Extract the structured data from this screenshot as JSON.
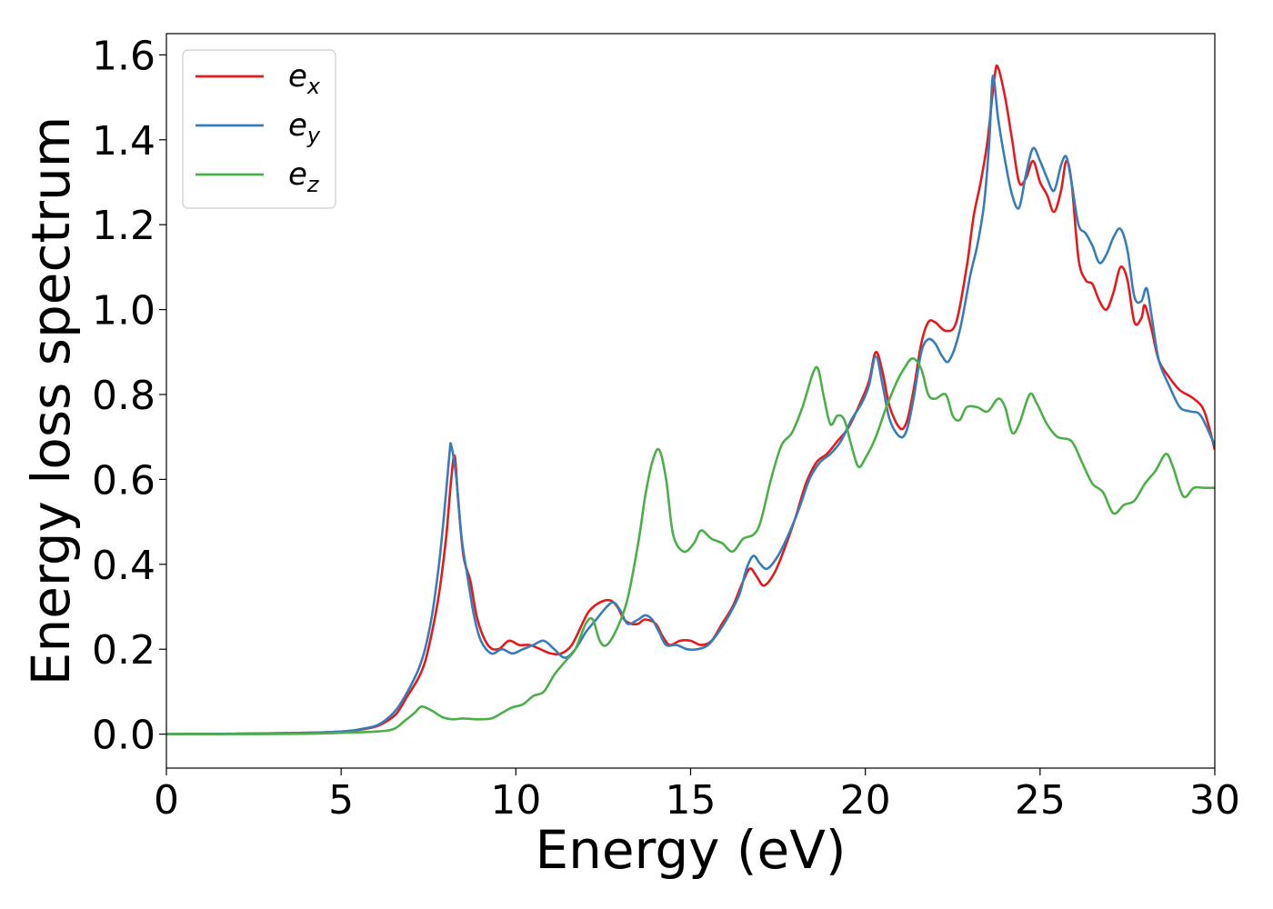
{
  "chart_data": {
    "type": "line",
    "title": "",
    "xlabel": "Energy (eV)",
    "ylabel": "Energy loss spectrum",
    "xlim": [
      0,
      30
    ],
    "ylim": [
      -0.08,
      1.65
    ],
    "xticks": [
      0,
      5,
      10,
      15,
      20,
      25,
      30
    ],
    "xtick_labels": [
      "0",
      "5",
      "10",
      "15",
      "20",
      "25",
      "30"
    ],
    "yticks": [
      0.0,
      0.2,
      0.4,
      0.6,
      0.8,
      1.0,
      1.2,
      1.4,
      1.6
    ],
    "ytick_labels": [
      "0.0",
      "0.2",
      "0.4",
      "0.6",
      "0.8",
      "1.0",
      "1.2",
      "1.4",
      "1.6"
    ],
    "grid": false,
    "legend_position": "top-left",
    "series": [
      {
        "name": "e_x",
        "legend_base": "e",
        "legend_sub": "x",
        "color": "#e41a1c",
        "points": [
          [
            0,
            0
          ],
          [
            2,
            0.001
          ],
          [
            4,
            0.003
          ],
          [
            5,
            0.006
          ],
          [
            5.5,
            0.01
          ],
          [
            6,
            0.018
          ],
          [
            6.3,
            0.03
          ],
          [
            6.6,
            0.05
          ],
          [
            6.9,
            0.09
          ],
          [
            7.2,
            0.13
          ],
          [
            7.4,
            0.17
          ],
          [
            7.6,
            0.24
          ],
          [
            7.8,
            0.33
          ],
          [
            8.0,
            0.46
          ],
          [
            8.15,
            0.6
          ],
          [
            8.25,
            0.655
          ],
          [
            8.35,
            0.55
          ],
          [
            8.5,
            0.42
          ],
          [
            8.7,
            0.36
          ],
          [
            8.9,
            0.27
          ],
          [
            9.2,
            0.21
          ],
          [
            9.5,
            0.2
          ],
          [
            9.8,
            0.22
          ],
          [
            10.1,
            0.21
          ],
          [
            10.4,
            0.21
          ],
          [
            10.7,
            0.2
          ],
          [
            11.0,
            0.19
          ],
          [
            11.3,
            0.19
          ],
          [
            11.6,
            0.21
          ],
          [
            11.9,
            0.26
          ],
          [
            12.1,
            0.29
          ],
          [
            12.4,
            0.31
          ],
          [
            12.7,
            0.315
          ],
          [
            12.9,
            0.3
          ],
          [
            13.1,
            0.27
          ],
          [
            13.3,
            0.26
          ],
          [
            13.5,
            0.26
          ],
          [
            13.7,
            0.27
          ],
          [
            14.0,
            0.26
          ],
          [
            14.2,
            0.23
          ],
          [
            14.4,
            0.21
          ],
          [
            14.7,
            0.22
          ],
          [
            15.0,
            0.22
          ],
          [
            15.3,
            0.21
          ],
          [
            15.6,
            0.22
          ],
          [
            15.9,
            0.26
          ],
          [
            16.2,
            0.3
          ],
          [
            16.5,
            0.36
          ],
          [
            16.7,
            0.39
          ],
          [
            16.9,
            0.37
          ],
          [
            17.1,
            0.35
          ],
          [
            17.4,
            0.38
          ],
          [
            17.7,
            0.44
          ],
          [
            18.0,
            0.51
          ],
          [
            18.3,
            0.59
          ],
          [
            18.6,
            0.64
          ],
          [
            18.9,
            0.66
          ],
          [
            19.2,
            0.69
          ],
          [
            19.5,
            0.72
          ],
          [
            19.8,
            0.77
          ],
          [
            20.1,
            0.83
          ],
          [
            20.3,
            0.9
          ],
          [
            20.5,
            0.85
          ],
          [
            20.7,
            0.77
          ],
          [
            21.0,
            0.72
          ],
          [
            21.2,
            0.74
          ],
          [
            21.4,
            0.82
          ],
          [
            21.6,
            0.92
          ],
          [
            21.8,
            0.97
          ],
          [
            22.0,
            0.97
          ],
          [
            22.3,
            0.95
          ],
          [
            22.6,
            0.97
          ],
          [
            22.9,
            1.1
          ],
          [
            23.1,
            1.22
          ],
          [
            23.3,
            1.3
          ],
          [
            23.5,
            1.4
          ],
          [
            23.7,
            1.55
          ],
          [
            23.8,
            1.57
          ],
          [
            24.0,
            1.5
          ],
          [
            24.2,
            1.4
          ],
          [
            24.4,
            1.3
          ],
          [
            24.6,
            1.31
          ],
          [
            24.8,
            1.35
          ],
          [
            25.0,
            1.3
          ],
          [
            25.2,
            1.27
          ],
          [
            25.4,
            1.23
          ],
          [
            25.6,
            1.28
          ],
          [
            25.75,
            1.35
          ],
          [
            25.9,
            1.3
          ],
          [
            26.1,
            1.12
          ],
          [
            26.3,
            1.07
          ],
          [
            26.5,
            1.06
          ],
          [
            26.7,
            1.02
          ],
          [
            26.9,
            1.0
          ],
          [
            27.1,
            1.04
          ],
          [
            27.3,
            1.1
          ],
          [
            27.5,
            1.07
          ],
          [
            27.7,
            0.97
          ],
          [
            27.9,
            0.98
          ],
          [
            28.0,
            1.01
          ],
          [
            28.2,
            0.95
          ],
          [
            28.4,
            0.88
          ],
          [
            28.7,
            0.84
          ],
          [
            29.0,
            0.81
          ],
          [
            29.4,
            0.79
          ],
          [
            29.7,
            0.76
          ],
          [
            30,
            0.67
          ]
        ]
      },
      {
        "name": "e_y",
        "legend_base": "e",
        "legend_sub": "y",
        "color": "#377eb8",
        "points": [
          [
            0,
            0
          ],
          [
            2,
            0.001
          ],
          [
            4,
            0.003
          ],
          [
            5,
            0.006
          ],
          [
            5.5,
            0.011
          ],
          [
            6,
            0.02
          ],
          [
            6.3,
            0.035
          ],
          [
            6.6,
            0.06
          ],
          [
            6.9,
            0.1
          ],
          [
            7.2,
            0.15
          ],
          [
            7.4,
            0.2
          ],
          [
            7.6,
            0.28
          ],
          [
            7.8,
            0.4
          ],
          [
            7.95,
            0.52
          ],
          [
            8.1,
            0.66
          ],
          [
            8.15,
            0.68
          ],
          [
            8.3,
            0.6
          ],
          [
            8.45,
            0.46
          ],
          [
            8.6,
            0.38
          ],
          [
            8.8,
            0.28
          ],
          [
            9.0,
            0.22
          ],
          [
            9.3,
            0.19
          ],
          [
            9.6,
            0.2
          ],
          [
            9.9,
            0.19
          ],
          [
            10.2,
            0.2
          ],
          [
            10.5,
            0.21
          ],
          [
            10.8,
            0.22
          ],
          [
            11.1,
            0.2
          ],
          [
            11.4,
            0.18
          ],
          [
            11.7,
            0.2
          ],
          [
            12.0,
            0.24
          ],
          [
            12.3,
            0.27
          ],
          [
            12.6,
            0.3
          ],
          [
            12.8,
            0.31
          ],
          [
            13.0,
            0.29
          ],
          [
            13.2,
            0.26
          ],
          [
            13.5,
            0.27
          ],
          [
            13.7,
            0.28
          ],
          [
            13.9,
            0.27
          ],
          [
            14.1,
            0.24
          ],
          [
            14.3,
            0.21
          ],
          [
            14.6,
            0.21
          ],
          [
            14.9,
            0.2
          ],
          [
            15.2,
            0.2
          ],
          [
            15.5,
            0.21
          ],
          [
            15.8,
            0.24
          ],
          [
            16.1,
            0.28
          ],
          [
            16.4,
            0.33
          ],
          [
            16.6,
            0.39
          ],
          [
            16.8,
            0.42
          ],
          [
            17.0,
            0.4
          ],
          [
            17.2,
            0.39
          ],
          [
            17.5,
            0.42
          ],
          [
            17.8,
            0.47
          ],
          [
            18.1,
            0.53
          ],
          [
            18.4,
            0.6
          ],
          [
            18.7,
            0.64
          ],
          [
            19.0,
            0.66
          ],
          [
            19.3,
            0.69
          ],
          [
            19.6,
            0.74
          ],
          [
            19.9,
            0.78
          ],
          [
            20.1,
            0.82
          ],
          [
            20.3,
            0.89
          ],
          [
            20.5,
            0.82
          ],
          [
            20.7,
            0.74
          ],
          [
            21.0,
            0.7
          ],
          [
            21.2,
            0.72
          ],
          [
            21.4,
            0.8
          ],
          [
            21.6,
            0.9
          ],
          [
            21.8,
            0.93
          ],
          [
            22.0,
            0.92
          ],
          [
            22.2,
            0.89
          ],
          [
            22.4,
            0.88
          ],
          [
            22.7,
            0.95
          ],
          [
            23.0,
            1.08
          ],
          [
            23.2,
            1.15
          ],
          [
            23.4,
            1.25
          ],
          [
            23.55,
            1.4
          ],
          [
            23.65,
            1.55
          ],
          [
            23.8,
            1.45
          ],
          [
            24.0,
            1.35
          ],
          [
            24.2,
            1.27
          ],
          [
            24.4,
            1.24
          ],
          [
            24.6,
            1.32
          ],
          [
            24.8,
            1.38
          ],
          [
            25.0,
            1.35
          ],
          [
            25.2,
            1.31
          ],
          [
            25.4,
            1.28
          ],
          [
            25.6,
            1.34
          ],
          [
            25.75,
            1.36
          ],
          [
            25.9,
            1.3
          ],
          [
            26.1,
            1.2
          ],
          [
            26.3,
            1.18
          ],
          [
            26.5,
            1.15
          ],
          [
            26.7,
            1.11
          ],
          [
            26.9,
            1.13
          ],
          [
            27.1,
            1.17
          ],
          [
            27.3,
            1.19
          ],
          [
            27.5,
            1.14
          ],
          [
            27.7,
            1.03
          ],
          [
            27.9,
            1.02
          ],
          [
            28.05,
            1.05
          ],
          [
            28.2,
            0.98
          ],
          [
            28.4,
            0.88
          ],
          [
            28.7,
            0.82
          ],
          [
            29.0,
            0.77
          ],
          [
            29.3,
            0.76
          ],
          [
            29.6,
            0.75
          ],
          [
            30,
            0.68
          ]
        ]
      },
      {
        "name": "e_z",
        "legend_base": "e",
        "legend_sub": "z",
        "color": "#4daf4a",
        "points": [
          [
            0,
            0
          ],
          [
            2,
            0
          ],
          [
            4,
            0.001
          ],
          [
            5,
            0.003
          ],
          [
            6,
            0.006
          ],
          [
            6.5,
            0.012
          ],
          [
            6.8,
            0.03
          ],
          [
            7.1,
            0.05
          ],
          [
            7.3,
            0.065
          ],
          [
            7.6,
            0.055
          ],
          [
            7.9,
            0.04
          ],
          [
            8.2,
            0.035
          ],
          [
            8.5,
            0.037
          ],
          [
            8.9,
            0.035
          ],
          [
            9.3,
            0.037
          ],
          [
            9.6,
            0.05
          ],
          [
            9.9,
            0.063
          ],
          [
            10.2,
            0.07
          ],
          [
            10.5,
            0.09
          ],
          [
            10.8,
            0.1
          ],
          [
            11.1,
            0.14
          ],
          [
            11.4,
            0.17
          ],
          [
            11.7,
            0.2
          ],
          [
            12.0,
            0.26
          ],
          [
            12.2,
            0.27
          ],
          [
            12.4,
            0.22
          ],
          [
            12.6,
            0.21
          ],
          [
            12.9,
            0.25
          ],
          [
            13.2,
            0.32
          ],
          [
            13.5,
            0.45
          ],
          [
            13.7,
            0.56
          ],
          [
            13.9,
            0.64
          ],
          [
            14.1,
            0.67
          ],
          [
            14.3,
            0.6
          ],
          [
            14.5,
            0.47
          ],
          [
            14.8,
            0.43
          ],
          [
            15.1,
            0.45
          ],
          [
            15.3,
            0.48
          ],
          [
            15.6,
            0.46
          ],
          [
            15.9,
            0.45
          ],
          [
            16.2,
            0.43
          ],
          [
            16.5,
            0.46
          ],
          [
            16.8,
            0.47
          ],
          [
            17.0,
            0.5
          ],
          [
            17.3,
            0.6
          ],
          [
            17.6,
            0.68
          ],
          [
            17.9,
            0.71
          ],
          [
            18.2,
            0.77
          ],
          [
            18.5,
            0.85
          ],
          [
            18.65,
            0.86
          ],
          [
            18.8,
            0.8
          ],
          [
            19.0,
            0.73
          ],
          [
            19.2,
            0.75
          ],
          [
            19.4,
            0.74
          ],
          [
            19.6,
            0.68
          ],
          [
            19.8,
            0.63
          ],
          [
            20.0,
            0.65
          ],
          [
            20.3,
            0.7
          ],
          [
            20.6,
            0.77
          ],
          [
            20.9,
            0.83
          ],
          [
            21.1,
            0.86
          ],
          [
            21.35,
            0.885
          ],
          [
            21.6,
            0.86
          ],
          [
            21.8,
            0.8
          ],
          [
            22.0,
            0.79
          ],
          [
            22.3,
            0.8
          ],
          [
            22.5,
            0.75
          ],
          [
            22.7,
            0.74
          ],
          [
            22.9,
            0.77
          ],
          [
            23.2,
            0.77
          ],
          [
            23.5,
            0.76
          ],
          [
            23.8,
            0.79
          ],
          [
            24.0,
            0.77
          ],
          [
            24.2,
            0.71
          ],
          [
            24.4,
            0.73
          ],
          [
            24.7,
            0.8
          ],
          [
            24.9,
            0.78
          ],
          [
            25.2,
            0.73
          ],
          [
            25.5,
            0.7
          ],
          [
            25.9,
            0.69
          ],
          [
            26.2,
            0.64
          ],
          [
            26.5,
            0.59
          ],
          [
            26.8,
            0.57
          ],
          [
            27.1,
            0.52
          ],
          [
            27.4,
            0.54
          ],
          [
            27.7,
            0.55
          ],
          [
            28.0,
            0.59
          ],
          [
            28.3,
            0.62
          ],
          [
            28.6,
            0.66
          ],
          [
            28.8,
            0.63
          ],
          [
            29.1,
            0.56
          ],
          [
            29.4,
            0.58
          ],
          [
            29.7,
            0.58
          ],
          [
            30,
            0.58
          ]
        ]
      }
    ]
  }
}
